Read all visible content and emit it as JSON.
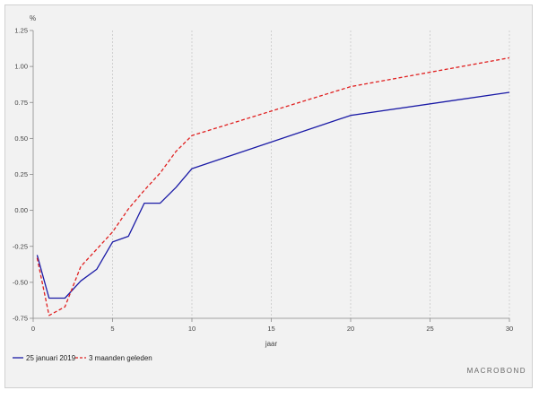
{
  "chart_data": {
    "type": "line",
    "ylabel": "%",
    "xlabel": "jaar",
    "xlim": [
      0,
      30
    ],
    "ylim": [
      -0.75,
      1.25
    ],
    "x_ticks": [
      0,
      5,
      10,
      15,
      20,
      25,
      30
    ],
    "y_ticks": [
      1.25,
      1.0,
      0.75,
      0.5,
      0.25,
      0.0,
      -0.25,
      -0.5,
      -0.75
    ],
    "x_tick_labels": [
      "0",
      "5",
      "10",
      "15",
      "20",
      "25",
      "30"
    ],
    "y_tick_labels": [
      "1.25",
      "1.00",
      "0.75",
      "0.50",
      "0.25",
      "0.00",
      "-0.25",
      "-0.50",
      "-0.75"
    ],
    "grid": "vertical",
    "legend_position": "bottom-left",
    "series": [
      {
        "name": "25 januari 2019",
        "color": "#1a1aa6",
        "style": "solid",
        "points": [
          [
            0.25,
            -0.31
          ],
          [
            1,
            -0.61
          ],
          [
            2,
            -0.61
          ],
          [
            3,
            -0.49
          ],
          [
            4,
            -0.41
          ],
          [
            5,
            -0.22
          ],
          [
            6,
            -0.18
          ],
          [
            7,
            0.05
          ],
          [
            8,
            0.05
          ],
          [
            9,
            0.16
          ],
          [
            10,
            0.29
          ],
          [
            20,
            0.66
          ],
          [
            30,
            0.82
          ]
        ]
      },
      {
        "name": "3 maanden geleden",
        "color": "#e02020",
        "style": "dashed",
        "points": [
          [
            0.25,
            -0.33
          ],
          [
            1,
            -0.73
          ],
          [
            2,
            -0.67
          ],
          [
            3,
            -0.39
          ],
          [
            4,
            -0.27
          ],
          [
            5,
            -0.15
          ],
          [
            6,
            0.01
          ],
          [
            7,
            0.14
          ],
          [
            8,
            0.26
          ],
          [
            9,
            0.41
          ],
          [
            10,
            0.52
          ],
          [
            20,
            0.86
          ],
          [
            30,
            1.06
          ]
        ]
      }
    ]
  },
  "branding": {
    "text": "MACROBOND"
  }
}
